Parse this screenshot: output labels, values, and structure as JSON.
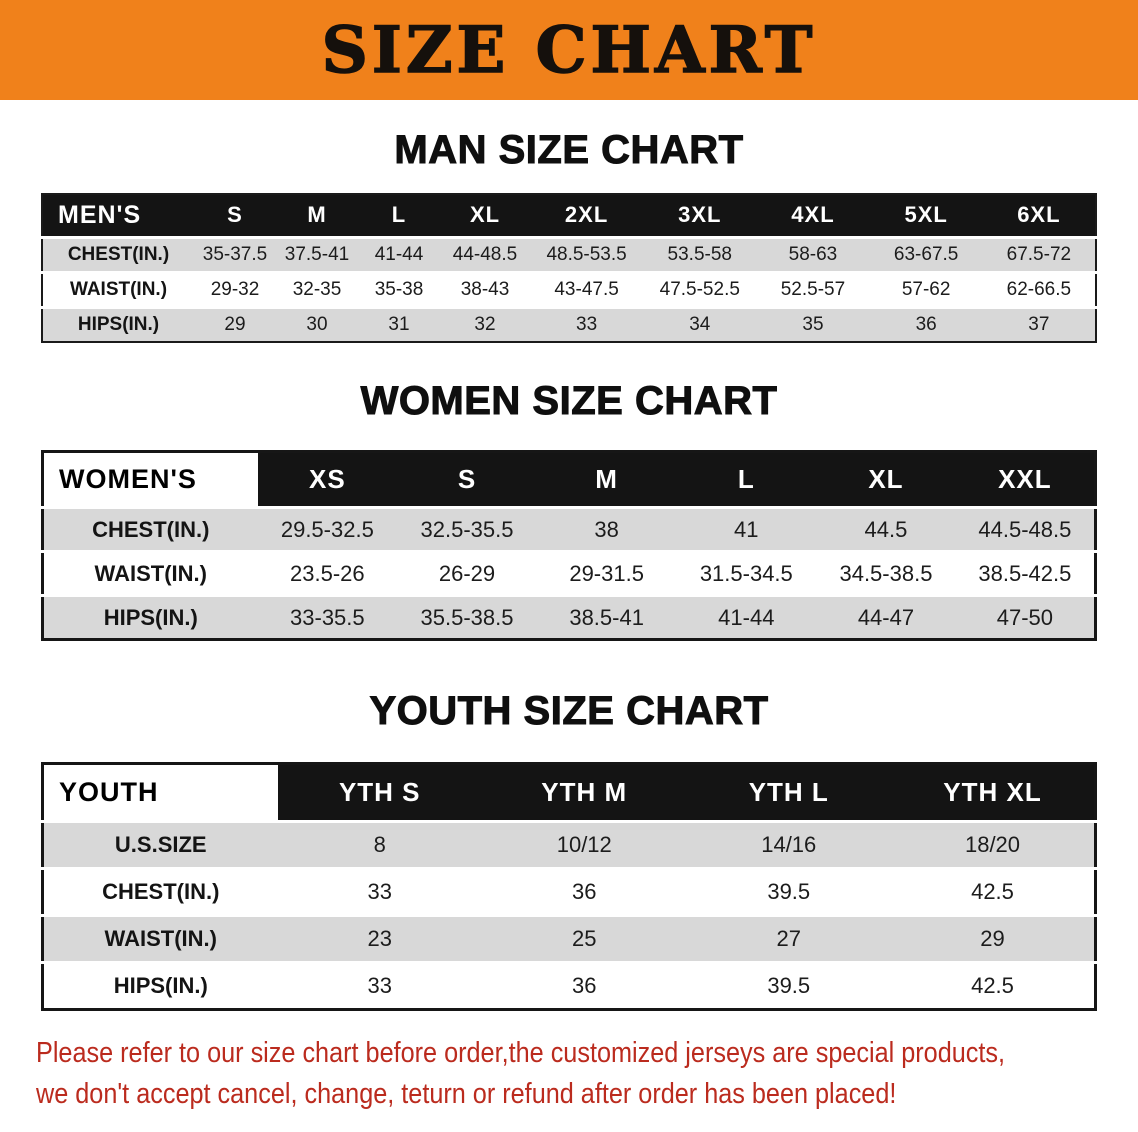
{
  "colors": {
    "orange": "#f0811b",
    "header_black": "#141414",
    "stripe_gray": "#d8d8d8",
    "red": "#bb2b1e"
  },
  "banner": {
    "title": "SIZE CHART"
  },
  "sections": [
    {
      "heading": "MAN SIZE CHART"
    },
    {
      "heading": "WOMEN SIZE CHART"
    },
    {
      "heading": "YOUTH SIZE CHART"
    }
  ],
  "tables": [
    {
      "name": "mens",
      "corner_label": "MEN'S",
      "sizes": [
        "S",
        "M",
        "L",
        "XL",
        "2XL",
        "3XL",
        "4XL",
        "5XL",
        "6XL"
      ],
      "rows": [
        {
          "label": "CHEST(IN.)",
          "values": [
            "35-37.5",
            "37.5-41",
            "41-44",
            "44-48.5",
            "48.5-53.5",
            "53.5-58",
            "58-63",
            "63-67.5",
            "67.5-72"
          ]
        },
        {
          "label": "WAIST(IN.)",
          "values": [
            "29-32",
            "32-35",
            "35-38",
            "38-43",
            "43-47.5",
            "47.5-52.5",
            "52.5-57",
            "57-62",
            "62-66.5"
          ]
        },
        {
          "label": "HIPS(IN.)",
          "values": [
            "29",
            "30",
            "31",
            "32",
            "33",
            "34",
            "35",
            "36",
            "37"
          ]
        }
      ]
    },
    {
      "name": "womens",
      "corner_label": "WOMEN'S",
      "sizes": [
        "XS",
        "S",
        "M",
        "L",
        "XL",
        "XXL"
      ],
      "rows": [
        {
          "label": "CHEST(IN.)",
          "values": [
            "29.5-32.5",
            "32.5-35.5",
            "38",
            "41",
            "44.5",
            "44.5-48.5"
          ]
        },
        {
          "label": "WAIST(IN.)",
          "values": [
            "23.5-26",
            "26-29",
            "29-31.5",
            "31.5-34.5",
            "34.5-38.5",
            "38.5-42.5"
          ]
        },
        {
          "label": "HIPS(IN.)",
          "values": [
            "33-35.5",
            "35.5-38.5",
            "38.5-41",
            "41-44",
            "44-47",
            "47-50"
          ]
        }
      ]
    },
    {
      "name": "youth",
      "corner_label": "YOUTH",
      "sizes": [
        "YTH S",
        "YTH M",
        "YTH L",
        "YTH XL"
      ],
      "rows": [
        {
          "label": "U.S.SIZE",
          "values": [
            "8",
            "10/12",
            "14/16",
            "18/20"
          ]
        },
        {
          "label": "CHEST(IN.)",
          "values": [
            "33",
            "36",
            "39.5",
            "42.5"
          ]
        },
        {
          "label": "WAIST(IN.)",
          "values": [
            "23",
            "25",
            "27",
            "29"
          ]
        },
        {
          "label": "HIPS(IN.)",
          "values": [
            "33",
            "36",
            "39.5",
            "42.5"
          ]
        }
      ]
    }
  ],
  "disclaimer": {
    "lines": [
      "Please refer to our size chart before order,the customized jerseys are special products,",
      "we don't accept cancel, change, teturn or refund after order has been placed!"
    ]
  }
}
